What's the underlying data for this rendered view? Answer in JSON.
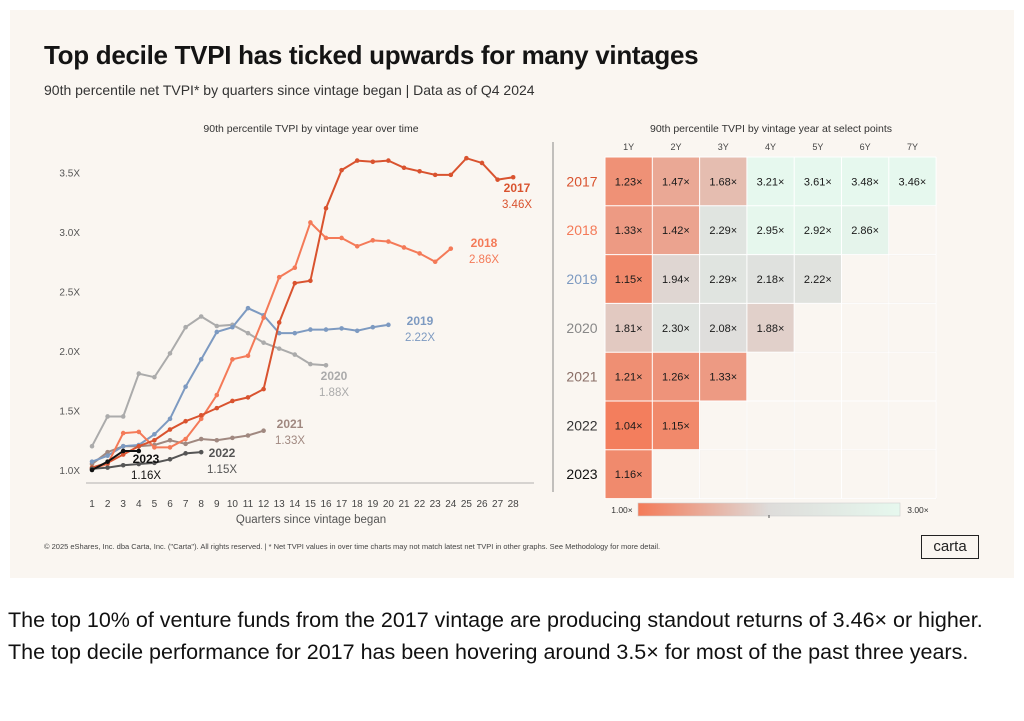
{
  "title": "Top decile TVPI has ticked upwards for many vintages",
  "subtitle": "90th percentile net TVPI* by quarters since vintage began | Data as of Q4 2024",
  "footer": "© 2025 eShares, Inc. dba Carta, Inc. (\"Carta\"). All rights reserved.  |  * Net TVPI values in over time charts may not match latest net TVPI in other  graphs. See Methodology for more detail.",
  "logo": "carta",
  "caption": "The top 10% of venture funds from the 2017 vintage are producing standout returns of 3.46× or higher. The top decile performance for 2017 has been hovering around 3.5× for most of the past three years.",
  "chart_data": [
    {
      "type": "line",
      "title": "90th percentile TVPI by vintage year over time",
      "xlabel": "Quarters since vintage began",
      "ylabel": "",
      "xlim": [
        1,
        28
      ],
      "ylim": [
        0.95,
        3.65
      ],
      "yticks": [
        1.0,
        1.5,
        2.0,
        2.5,
        3.0,
        3.5
      ],
      "ytick_labels": [
        "1.0X",
        "1.5X",
        "2.0X",
        "2.5X",
        "3.0X",
        "3.5X"
      ],
      "xticks": [
        1,
        2,
        3,
        4,
        5,
        6,
        7,
        8,
        9,
        10,
        11,
        12,
        13,
        14,
        15,
        16,
        17,
        18,
        19,
        20,
        21,
        22,
        23,
        24,
        25,
        26,
        27,
        28
      ],
      "grid": false,
      "series": [
        {
          "name": "2017",
          "end_label": "3.46X",
          "color": "#d9532f",
          "x": [
            1,
            2,
            3,
            4,
            5,
            6,
            7,
            8,
            9,
            10,
            11,
            12,
            13,
            14,
            15,
            16,
            17,
            18,
            19,
            20,
            21,
            22,
            23,
            24,
            25,
            26,
            27,
            28
          ],
          "y": [
            1.02,
            1.06,
            1.13,
            1.2,
            1.25,
            1.34,
            1.41,
            1.46,
            1.52,
            1.58,
            1.61,
            1.68,
            2.24,
            2.57,
            2.59,
            3.2,
            3.52,
            3.6,
            3.59,
            3.6,
            3.54,
            3.51,
            3.48,
            3.48,
            3.62,
            3.58,
            3.44,
            3.46
          ]
        },
        {
          "name": "2018",
          "end_label": "2.86X",
          "color": "#f47a58",
          "x": [
            1,
            2,
            3,
            4,
            5,
            6,
            7,
            8,
            9,
            10,
            11,
            12,
            13,
            14,
            15,
            16,
            17,
            18,
            19,
            20,
            21,
            22,
            23,
            24
          ],
          "y": [
            1.01,
            1.05,
            1.31,
            1.32,
            1.19,
            1.19,
            1.26,
            1.43,
            1.63,
            1.93,
            1.96,
            2.28,
            2.62,
            2.7,
            3.08,
            2.95,
            2.95,
            2.88,
            2.93,
            2.92,
            2.87,
            2.82,
            2.75,
            2.86
          ]
        },
        {
          "name": "2019",
          "end_label": "2.22X",
          "color": "#7d9ac1",
          "x": [
            1,
            2,
            3,
            4,
            5,
            6,
            7,
            8,
            9,
            10,
            11,
            12,
            13,
            14,
            15,
            16,
            17,
            18,
            19,
            20
          ],
          "y": [
            1.07,
            1.12,
            1.2,
            1.21,
            1.3,
            1.43,
            1.7,
            1.93,
            2.16,
            2.2,
            2.36,
            2.3,
            2.15,
            2.15,
            2.18,
            2.18,
            2.19,
            2.17,
            2.2,
            2.22
          ]
        },
        {
          "name": "2020",
          "end_label": "1.88X",
          "color": "#ababab",
          "x": [
            1,
            2,
            3,
            4,
            5,
            6,
            7,
            8,
            9,
            10,
            11,
            12,
            13,
            14,
            15,
            16
          ],
          "y": [
            1.2,
            1.45,
            1.45,
            1.81,
            1.78,
            1.98,
            2.2,
            2.29,
            2.21,
            2.22,
            2.15,
            2.07,
            2.02,
            1.97,
            1.89,
            1.88
          ]
        },
        {
          "name": "2021",
          "end_label": "1.33X",
          "color": "#a08880",
          "x": [
            1,
            2,
            3,
            4,
            5,
            6,
            7,
            8,
            9,
            10,
            11,
            12
          ],
          "y": [
            1.05,
            1.15,
            1.2,
            1.2,
            1.21,
            1.25,
            1.22,
            1.26,
            1.25,
            1.27,
            1.29,
            1.33
          ]
        },
        {
          "name": "2022",
          "end_label": "1.15X",
          "color": "#555555",
          "x": [
            1,
            2,
            3,
            4,
            5,
            6,
            7,
            8
          ],
          "y": [
            1.01,
            1.02,
            1.04,
            1.05,
            1.06,
            1.09,
            1.14,
            1.15
          ]
        },
        {
          "name": "2023",
          "end_label": "1.16X",
          "color": "#111111",
          "x": [
            1,
            2,
            3,
            4
          ],
          "y": [
            1.0,
            1.07,
            1.16,
            1.16
          ]
        }
      ]
    },
    {
      "type": "heatmap",
      "title": "90th percentile TVPI by vintage year at select points",
      "columns": [
        "1Y",
        "2Y",
        "3Y",
        "4Y",
        "5Y",
        "6Y",
        "7Y"
      ],
      "rows": [
        {
          "year": "2017",
          "color": "#d9532f",
          "values": [
            1.23,
            1.47,
            1.68,
            3.21,
            3.61,
            3.48,
            3.46
          ]
        },
        {
          "year": "2018",
          "color": "#f47a58",
          "values": [
            1.33,
            1.42,
            2.29,
            2.95,
            2.92,
            2.86
          ]
        },
        {
          "year": "2019",
          "color": "#7d9ac1",
          "values": [
            1.15,
            1.94,
            2.29,
            2.18,
            2.22
          ]
        },
        {
          "year": "2020",
          "color": "#888888",
          "values": [
            1.81,
            2.3,
            2.08,
            1.88
          ]
        },
        {
          "year": "2021",
          "color": "#8a6e66",
          "values": [
            1.21,
            1.26,
            1.33
          ]
        },
        {
          "year": "2022",
          "color": "#333333",
          "values": [
            1.04,
            1.15
          ]
        },
        {
          "year": "2023",
          "color": "#111111",
          "values": [
            1.16
          ]
        }
      ],
      "labels": [
        [
          "1.23×",
          "1.47×",
          "1.68×",
          "3.21×",
          "3.61×",
          "3.48×",
          "3.46×"
        ],
        [
          "1.33×",
          "1.42×",
          "2.29×",
          "2.95×",
          "2.92×",
          "2.86×"
        ],
        [
          "1.15×",
          "1.94×",
          "2.29×",
          "2.18×",
          "2.22×"
        ],
        [
          "1.81×",
          "2.30×",
          "2.08×",
          "1.88×"
        ],
        [
          "1.21×",
          "1.26×",
          "1.33×"
        ],
        [
          "1.04×",
          "1.15×"
        ],
        [
          "1.16×"
        ]
      ],
      "color_scale": {
        "min": 1.0,
        "mid": 2.0,
        "max": 3.0,
        "min_label": "1.00×",
        "max_label": "3.00×",
        "colors": [
          "#f47a58",
          "#dedcda",
          "#e6f8ee"
        ]
      }
    }
  ]
}
